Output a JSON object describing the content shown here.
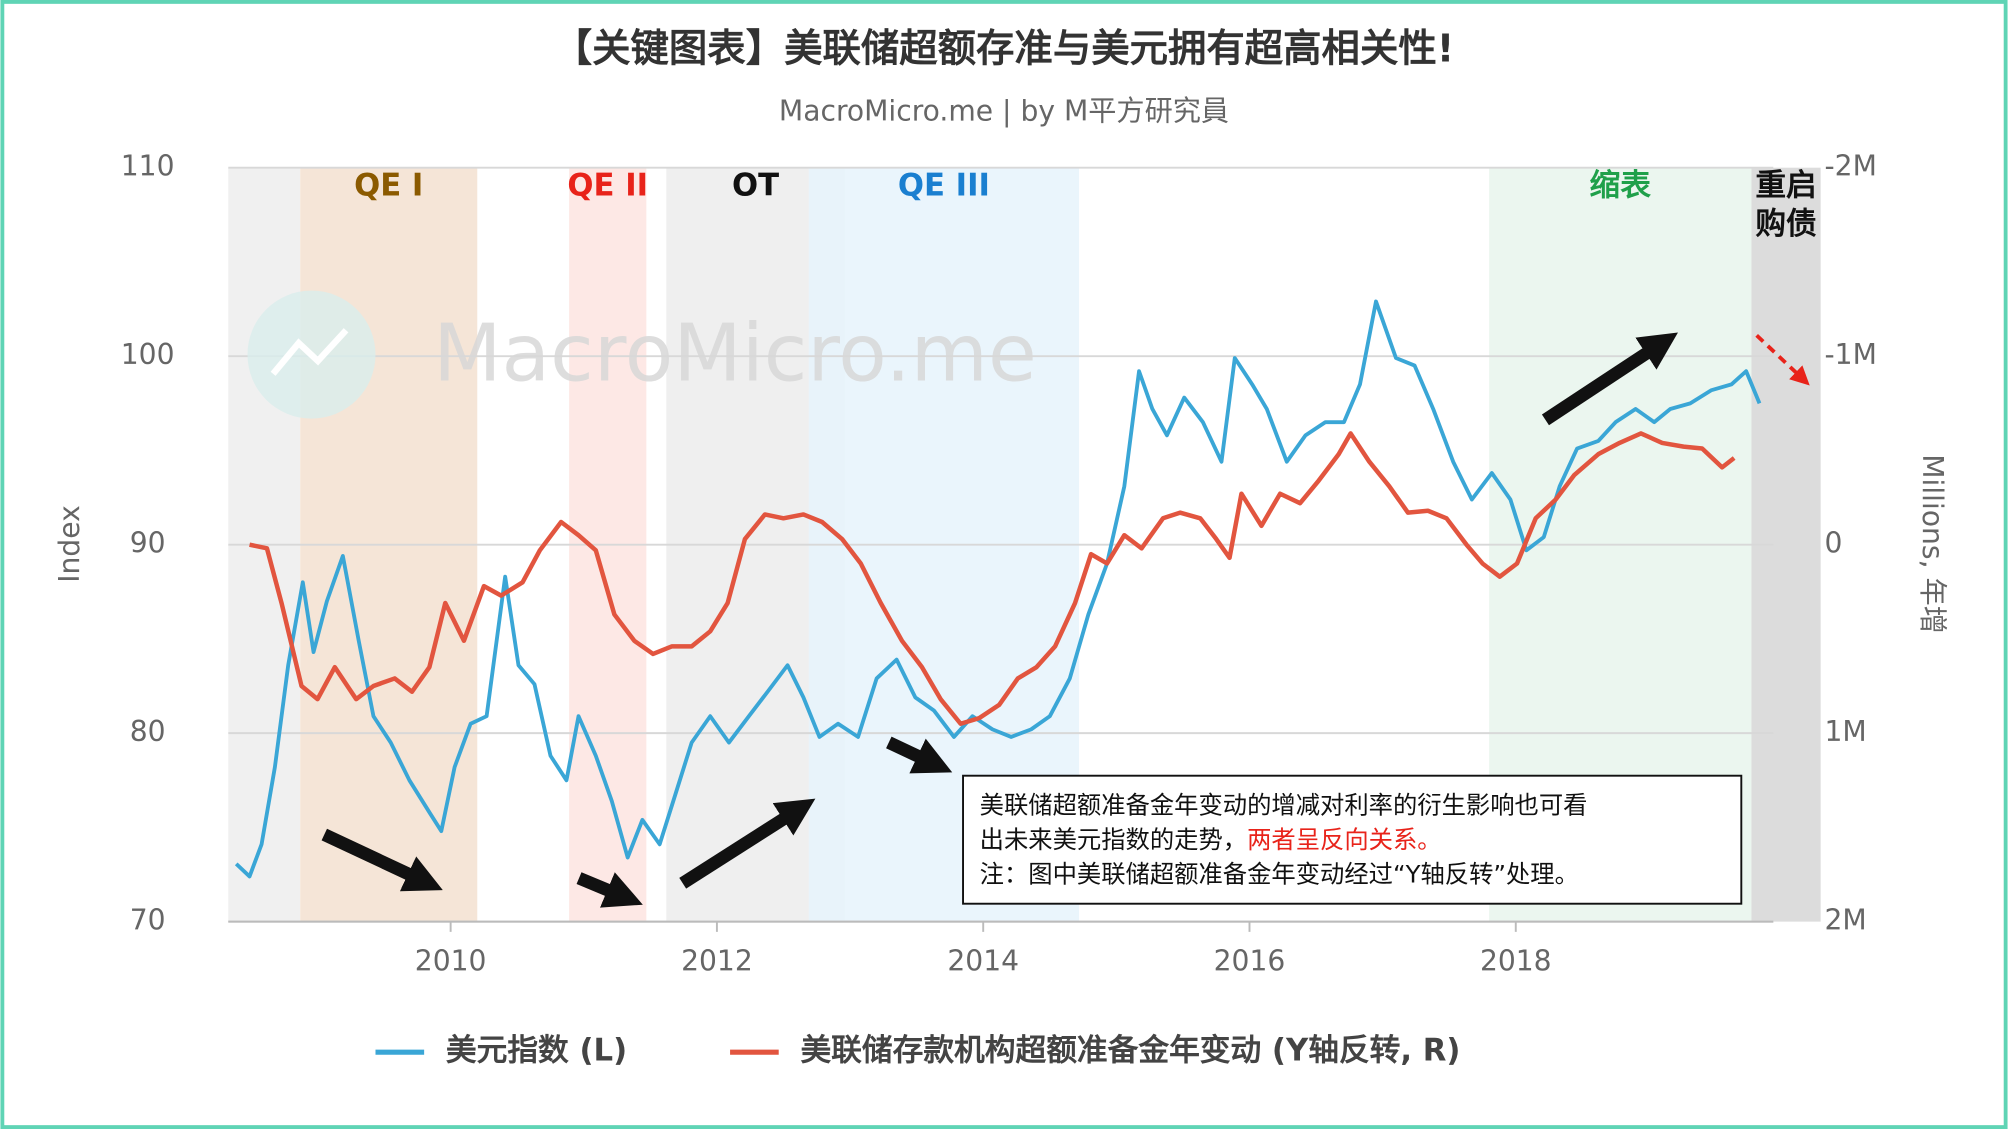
{
  "chart_data": {
    "type": "line",
    "title": "【关键图表】美联储超额存准与美元拥有超高相关性!",
    "subtitle": "MacroMicro.me | by M平方研究員",
    "watermark": "MacroMicro.me",
    "ylabel": "Index",
    "y2label": "Millions, 年增",
    "xlim": [
      2008.33,
      2020.29
    ],
    "xticks": [
      2010,
      2012,
      2014,
      2016,
      2018
    ],
    "ylim": [
      70,
      110
    ],
    "yticks": [
      70,
      80,
      90,
      100,
      110
    ],
    "y2lim": [
      2,
      -2
    ],
    "y2ticks": [
      {
        "value": 2,
        "label": "2M"
      },
      {
        "value": 1,
        "label": "1M"
      },
      0,
      {
        "value": -1,
        "label": "-1M"
      },
      {
        "value": -2,
        "label": "-2M"
      }
    ],
    "grid": true,
    "periods": [
      {
        "label": [
          "QE I"
        ],
        "start": 2008.87,
        "end": 2010.2,
        "color": "#f3e0d0",
        "label_color": "#8b5a00"
      },
      {
        "label": [
          "QE II"
        ],
        "start": 2010.89,
        "end": 2011.47,
        "color": "#fde4e0",
        "label_color": "#e8231a"
      },
      {
        "label": [
          "OT"
        ],
        "start": 2011.62,
        "end": 2012.96,
        "color": "#ececec",
        "label_color": "#111111"
      },
      {
        "label": [
          "QE III"
        ],
        "start": 2012.69,
        "end": 2014.72,
        "color": "#e6f3fb",
        "label_color": "#1a7fd0"
      },
      {
        "label": [
          "缩表"
        ],
        "start": 2017.8,
        "end": 2019.77,
        "color": "#e8f5ec",
        "label_color": "#1fa04a"
      },
      {
        "label": [
          "重启",
          "购债"
        ],
        "start": 2019.77,
        "end": 2020.29,
        "color": "#d6d6d6",
        "label_color": "#111111"
      }
    ],
    "series": [
      {
        "name": "美元指数 (L)",
        "color": "#3aa6d6",
        "axis": "y",
        "x": [
          2008.39,
          2008.49,
          2008.58,
          2008.68,
          2008.78,
          2008.89,
          2008.97,
          2009.07,
          2009.19,
          2009.31,
          2009.42,
          2009.55,
          2009.69,
          2009.84,
          2009.93,
          2010.03,
          2010.15,
          2010.27,
          2010.41,
          2010.51,
          2010.63,
          2010.75,
          2010.87,
          2010.96,
          2011.09,
          2011.21,
          2011.33,
          2011.44,
          2011.57,
          2011.69,
          2011.81,
          2011.95,
          2012.09,
          2012.24,
          2012.38,
          2012.53,
          2012.65,
          2012.77,
          2012.91,
          2013.06,
          2013.2,
          2013.35,
          2013.49,
          2013.63,
          2013.78,
          2013.92,
          2014.07,
          2014.21,
          2014.36,
          2014.5,
          2014.65,
          2014.79,
          2014.93,
          2015.06,
          2015.17,
          2015.27,
          2015.38,
          2015.51,
          2015.65,
          2015.79,
          2015.89,
          2016.02,
          2016.13,
          2016.28,
          2016.42,
          2016.57,
          2016.71,
          2016.83,
          2016.95,
          2017.1,
          2017.24,
          2017.38,
          2017.53,
          2017.67,
          2017.82,
          2017.96,
          2018.08,
          2018.21,
          2018.33,
          2018.46,
          2018.62,
          2018.75,
          2018.9,
          2019.04,
          2019.16,
          2019.31,
          2019.47,
          2019.62,
          2019.73,
          2019.83
        ],
        "values": [
          73.06,
          72.4,
          74.1,
          78.2,
          83.6,
          88.0,
          84.3,
          87.0,
          89.4,
          84.9,
          80.9,
          79.5,
          77.5,
          75.8,
          74.8,
          78.2,
          80.5,
          80.9,
          88.3,
          83.6,
          82.6,
          78.8,
          77.5,
          80.9,
          78.8,
          76.4,
          73.4,
          75.4,
          74.1,
          76.8,
          79.5,
          80.9,
          79.5,
          80.9,
          82.2,
          83.6,
          81.9,
          79.8,
          80.5,
          79.8,
          82.9,
          83.9,
          81.9,
          81.2,
          79.8,
          80.9,
          80.2,
          79.8,
          80.2,
          80.9,
          82.9,
          86.3,
          89.0,
          93.1,
          99.2,
          97.2,
          95.8,
          97.8,
          96.5,
          94.4,
          99.9,
          98.5,
          97.2,
          94.4,
          95.8,
          96.5,
          96.5,
          98.5,
          102.9,
          99.9,
          99.5,
          97.2,
          94.4,
          92.4,
          93.8,
          92.4,
          89.7,
          90.4,
          93.1,
          95.1,
          95.5,
          96.5,
          97.2,
          96.5,
          97.2,
          97.5,
          98.2,
          98.5,
          99.2,
          97.5
        ]
      },
      {
        "name": "美联储存款机构超额准备金年变动 (Y轴反转, R)",
        "color": "#e2553f",
        "axis": "y2",
        "x": [
          2008.49,
          2008.62,
          2008.73,
          2008.88,
          2009.0,
          2009.13,
          2009.29,
          2009.42,
          2009.58,
          2009.71,
          2009.84,
          2009.96,
          2010.1,
          2010.25,
          2010.38,
          2010.54,
          2010.67,
          2010.83,
          2010.96,
          2011.09,
          2011.23,
          2011.38,
          2011.52,
          2011.66,
          2011.81,
          2011.95,
          2012.08,
          2012.21,
          2012.36,
          2012.5,
          2012.65,
          2012.79,
          2012.94,
          2013.08,
          2013.23,
          2013.39,
          2013.54,
          2013.68,
          2013.83,
          2013.97,
          2014.12,
          2014.26,
          2014.4,
          2014.54,
          2014.69,
          2014.81,
          2014.93,
          2015.06,
          2015.19,
          2015.35,
          2015.48,
          2015.63,
          2015.75,
          2015.85,
          2015.94,
          2016.09,
          2016.23,
          2016.38,
          2016.52,
          2016.67,
          2016.76,
          2016.9,
          2017.05,
          2017.19,
          2017.34,
          2017.48,
          2017.63,
          2017.75,
          2017.88,
          2018.01,
          2018.15,
          2018.3,
          2018.44,
          2018.62,
          2018.78,
          2018.94,
          2019.1,
          2019.26,
          2019.4,
          2019.55,
          2019.64
        ],
        "values": [
          0,
          0.02,
          0.31,
          0.75,
          0.82,
          0.65,
          0.82,
          0.75,
          0.71,
          0.78,
          0.65,
          0.31,
          0.51,
          0.22,
          0.27,
          0.2,
          0.03,
          -0.12,
          -0.05,
          0.03,
          0.37,
          0.51,
          0.58,
          0.54,
          0.54,
          0.46,
          0.31,
          -0.03,
          -0.16,
          -0.14,
          -0.16,
          -0.12,
          -0.03,
          0.1,
          0.31,
          0.51,
          0.65,
          0.82,
          0.95,
          0.92,
          0.85,
          0.71,
          0.65,
          0.54,
          0.31,
          0.05,
          0.1,
          -0.05,
          0.02,
          -0.14,
          -0.17,
          -0.14,
          -0.03,
          0.07,
          -0.27,
          -0.1,
          -0.27,
          -0.22,
          -0.34,
          -0.48,
          -0.59,
          -0.44,
          -0.31,
          -0.17,
          -0.18,
          -0.14,
          0,
          0.1,
          0.17,
          0.1,
          -0.14,
          -0.24,
          -0.37,
          -0.48,
          -0.54,
          -0.59,
          -0.54,
          -0.52,
          -0.51,
          -0.41,
          -0.46
        ]
      }
    ],
    "annotation": {
      "line1": "美联储超额准备金年变动的增减对利率的衍生影响也可看",
      "line2": "出未来美元指数的走势，",
      "line2_highlight": "两者呈反向关系。",
      "line3": "注：图中美联储超额准备金年变动经过“Y轴反转”处理。"
    }
  }
}
